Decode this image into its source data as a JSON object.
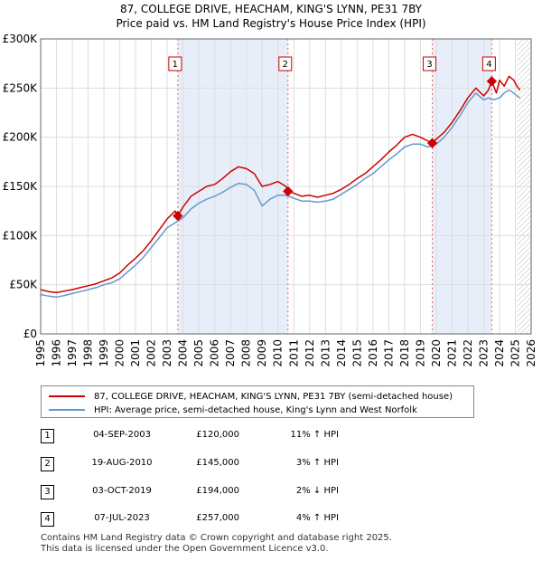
{
  "header": {
    "title_line1": "87, COLLEGE DRIVE, HEACHAM, KING'S LYNN, PE31 7BY",
    "title_line2": "Price paid vs. HM Land Registry's House Price Index (HPI)"
  },
  "chart_data": {
    "type": "line",
    "xlim": [
      1995,
      2026
    ],
    "ylim": [
      0,
      300000
    ],
    "y_ticks": [
      0,
      50000,
      100000,
      150000,
      200000,
      250000,
      300000
    ],
    "y_tick_labels": [
      "£0",
      "£50K",
      "£100K",
      "£150K",
      "£200K",
      "£250K",
      "£300K"
    ],
    "x_ticks": [
      1995,
      1996,
      1997,
      1998,
      1999,
      2000,
      2001,
      2002,
      2003,
      2004,
      2005,
      2006,
      2007,
      2008,
      2009,
      2010,
      2011,
      2012,
      2013,
      2014,
      2015,
      2016,
      2017,
      2018,
      2019,
      2020,
      2021,
      2022,
      2023,
      2024,
      2025,
      2026
    ],
    "x_tick_labels": [
      "1995",
      "1996",
      "1997",
      "1998",
      "1999",
      "2000",
      "2001",
      "2002",
      "2003",
      "2004",
      "2005",
      "2006",
      "2007",
      "2008",
      "2009",
      "2010",
      "2011",
      "2012",
      "2013",
      "2014",
      "2015",
      "2016",
      "2017",
      "2018",
      "2019",
      "2020",
      "2021",
      "2022",
      "2023",
      "2024",
      "2025",
      "2026"
    ],
    "shaded_periods": [
      [
        2003.67,
        2010.63
      ],
      [
        2019.75,
        2023.51
      ]
    ],
    "future_hatch_from": 2025.1,
    "series": [
      {
        "name": "87, COLLEGE DRIVE, HEACHAM, KING'S LYNN, PE31 7BY (semi-detached house)",
        "color": "#cc0000",
        "x": [
          1995.0,
          1995.5,
          1996.0,
          1996.5,
          1997.0,
          1997.5,
          1998.0,
          1998.5,
          1999.0,
          1999.5,
          2000.0,
          2000.5,
          2001.0,
          2001.5,
          2002.0,
          2002.5,
          2003.0,
          2003.5,
          2003.67,
          2004.0,
          2004.5,
          2005.0,
          2005.5,
          2006.0,
          2006.5,
          2007.0,
          2007.5,
          2008.0,
          2008.5,
          2009.0,
          2009.5,
          2010.0,
          2010.5,
          2010.63,
          2011.0,
          2011.5,
          2012.0,
          2012.5,
          2013.0,
          2013.5,
          2014.0,
          2014.5,
          2015.0,
          2015.5,
          2016.0,
          2016.5,
          2017.0,
          2017.5,
          2018.0,
          2018.5,
          2019.0,
          2019.5,
          2019.75,
          2020.0,
          2020.5,
          2021.0,
          2021.5,
          2022.0,
          2022.5,
          2023.0,
          2023.3,
          2023.51,
          2023.8,
          2024.0,
          2024.3,
          2024.6,
          2024.9,
          2025.1,
          2025.3
        ],
        "y": [
          45000,
          43000,
          42000,
          43500,
          45000,
          47000,
          49000,
          51000,
          54000,
          57000,
          62000,
          70000,
          77000,
          85000,
          95000,
          106000,
          117000,
          125000,
          120000,
          129000,
          140000,
          145000,
          150000,
          152000,
          158000,
          165000,
          170000,
          168000,
          163000,
          150000,
          152000,
          155000,
          150000,
          145000,
          143000,
          140000,
          141000,
          139000,
          141000,
          143000,
          147000,
          152000,
          158000,
          163000,
          170000,
          177000,
          185000,
          192000,
          200000,
          203000,
          200000,
          196000,
          194000,
          198000,
          205000,
          215000,
          227000,
          240000,
          250000,
          242000,
          248000,
          257000,
          245000,
          258000,
          252000,
          262000,
          258000,
          252000,
          248000
        ]
      },
      {
        "name": "HPI: Average price, semi-detached house, King's Lynn and West Norfolk",
        "color": "#6699cc",
        "x": [
          1995.0,
          1995.5,
          1996.0,
          1996.5,
          1997.0,
          1997.5,
          1998.0,
          1998.5,
          1999.0,
          1999.5,
          2000.0,
          2000.5,
          2001.0,
          2001.5,
          2002.0,
          2002.5,
          2003.0,
          2003.5,
          2004.0,
          2004.5,
          2005.0,
          2005.5,
          2006.0,
          2006.5,
          2007.0,
          2007.5,
          2008.0,
          2008.5,
          2009.0,
          2009.5,
          2010.0,
          2010.5,
          2011.0,
          2011.5,
          2012.0,
          2012.5,
          2013.0,
          2013.5,
          2014.0,
          2014.5,
          2015.0,
          2015.5,
          2016.0,
          2016.5,
          2017.0,
          2017.5,
          2018.0,
          2018.5,
          2019.0,
          2019.5,
          2020.0,
          2020.5,
          2021.0,
          2021.5,
          2022.0,
          2022.5,
          2023.0,
          2023.3,
          2023.6,
          2024.0,
          2024.3,
          2024.6,
          2024.9,
          2025.1,
          2025.3
        ],
        "y": [
          40000,
          38500,
          37500,
          39000,
          41000,
          43000,
          45000,
          47000,
          50000,
          52000,
          56000,
          63000,
          70000,
          78000,
          88000,
          98000,
          108000,
          113000,
          118000,
          127000,
          133000,
          137000,
          140000,
          144000,
          149000,
          153000,
          152000,
          146000,
          130000,
          137000,
          141000,
          141000,
          138000,
          135000,
          135000,
          134000,
          135000,
          137000,
          142000,
          147000,
          152000,
          158000,
          163000,
          170000,
          177000,
          183000,
          190000,
          193000,
          193000,
          190000,
          193000,
          200000,
          210000,
          222000,
          235000,
          245000,
          238000,
          240000,
          238000,
          240000,
          245000,
          248000,
          245000,
          242000,
          240000
        ]
      }
    ],
    "markers": [
      {
        "label": "1",
        "x": 2003.67,
        "y": 120000
      },
      {
        "label": "2",
        "x": 2010.63,
        "y": 145000
      },
      {
        "label": "3",
        "x": 2019.75,
        "y": 194000
      },
      {
        "label": "4",
        "x": 2023.51,
        "y": 257000
      }
    ]
  },
  "legend": {
    "series1": "87, COLLEGE DRIVE, HEACHAM, KING'S LYNN, PE31 7BY (semi-detached house)",
    "series2": "HPI: Average price, semi-detached house, King's Lynn and West Norfolk"
  },
  "transactions": [
    {
      "num": "1",
      "date": "04-SEP-2003",
      "price": "£120,000",
      "hpi": "11% ↑ HPI"
    },
    {
      "num": "2",
      "date": "19-AUG-2010",
      "price": "£145,000",
      "hpi": "3% ↑ HPI"
    },
    {
      "num": "3",
      "date": "03-OCT-2019",
      "price": "£194,000",
      "hpi": "2% ↓ HPI"
    },
    {
      "num": "4",
      "date": "07-JUL-2023",
      "price": "£257,000",
      "hpi": "4% ↑ HPI"
    }
  ],
  "footer": {
    "line1": "Contains HM Land Registry data © Crown copyright and database right 2025.",
    "line2": "This data is licensed under the Open Government Licence v3.0."
  }
}
